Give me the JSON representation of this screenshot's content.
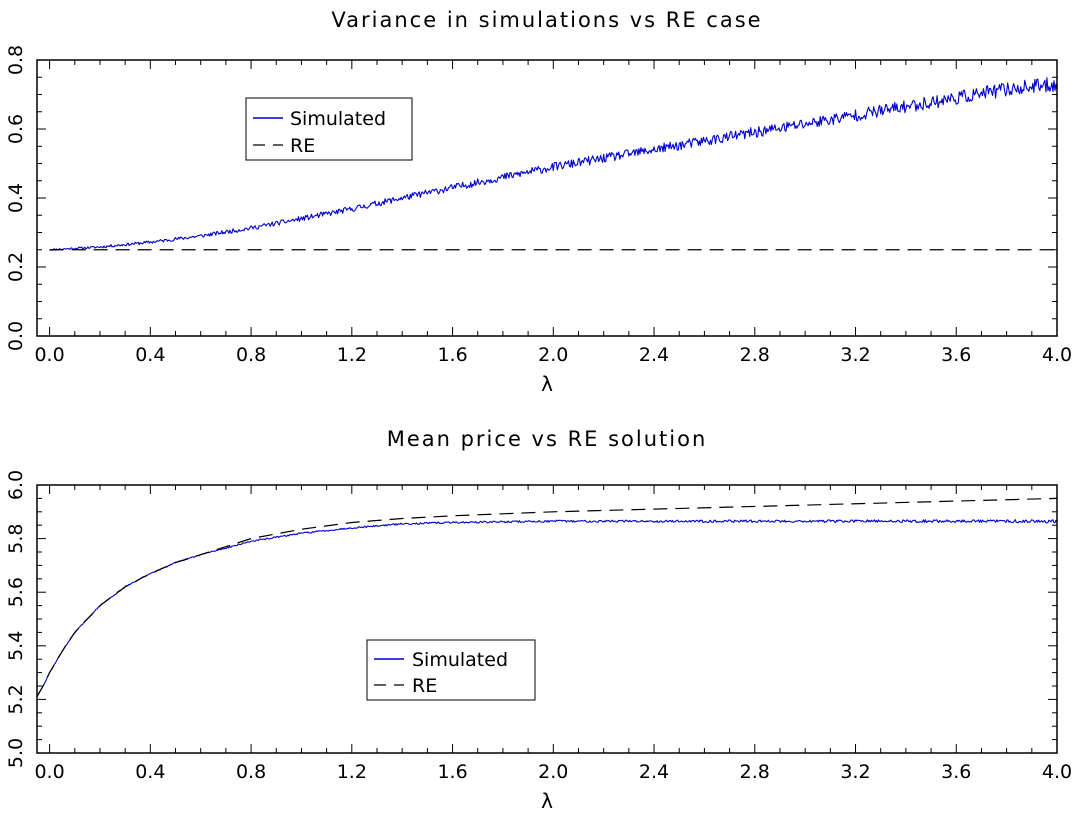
{
  "chart_data": [
    {
      "type": "line",
      "title": "Variance in simulations vs RE case",
      "xlabel": "λ",
      "ylabel": "",
      "xlim": [
        -0.05,
        4.0
      ],
      "ylim": [
        0.0,
        0.8
      ],
      "x_ticks": [
        0.0,
        0.4,
        0.8,
        1.2,
        1.6,
        2.0,
        2.4,
        2.8,
        3.2,
        3.6,
        4.0
      ],
      "x_tick_labels": [
        "0.0",
        "0.4",
        "0.8",
        "1.2",
        "1.6",
        "2.0",
        "2.4",
        "2.8",
        "3.2",
        "3.6",
        "4.0"
      ],
      "y_ticks": [
        0.0,
        0.2,
        0.4,
        0.6,
        0.8
      ],
      "y_tick_labels": [
        "0.0",
        "0.2",
        "0.4",
        "0.6",
        "0.8"
      ],
      "grid": false,
      "legend": "upper-left",
      "noise_amplitude_per_unit": 0.006,
      "series": [
        {
          "name": "Simulated",
          "color": "#0000cc",
          "style": "solid",
          "noisy": true,
          "x": [
            0.0,
            0.2,
            0.4,
            0.6,
            0.8,
            1.0,
            1.2,
            1.4,
            1.6,
            1.8,
            2.0,
            2.2,
            2.4,
            2.6,
            2.8,
            3.0,
            3.2,
            3.4,
            3.6,
            3.8,
            4.0
          ],
          "y": [
            0.25,
            0.258,
            0.272,
            0.29,
            0.313,
            0.34,
            0.368,
            0.4,
            0.43,
            0.46,
            0.49,
            0.515,
            0.54,
            0.565,
            0.59,
            0.615,
            0.64,
            0.665,
            0.69,
            0.715,
            0.73
          ]
        },
        {
          "name": "RE",
          "color": "#000000",
          "style": "dashed",
          "noisy": false,
          "x": [
            0.0,
            4.0
          ],
          "y": [
            0.25,
            0.25
          ]
        }
      ]
    },
    {
      "type": "line",
      "title": "Mean price vs RE solution",
      "xlabel": "λ",
      "ylabel": "",
      "xlim": [
        -0.05,
        4.0
      ],
      "ylim": [
        5.0,
        6.0
      ],
      "x_ticks": [
        0.0,
        0.4,
        0.8,
        1.2,
        1.6,
        2.0,
        2.4,
        2.8,
        3.2,
        3.6,
        4.0
      ],
      "x_tick_labels": [
        "0.0",
        "0.4",
        "0.8",
        "1.2",
        "1.6",
        "2.0",
        "2.4",
        "2.8",
        "3.2",
        "3.6",
        "4.0"
      ],
      "y_ticks": [
        5.0,
        5.2,
        5.4,
        5.6,
        5.8,
        6.0
      ],
      "y_tick_labels": [
        "5.0",
        "5.2",
        "5.4",
        "5.6",
        "5.8",
        "6.0"
      ],
      "grid": false,
      "legend": "center",
      "noise_amplitude_per_unit": 0.004,
      "series": [
        {
          "name": "Simulated",
          "color": "#0000cc",
          "style": "solid",
          "noisy": true,
          "x": [
            -0.05,
            -0.02,
            0.0,
            0.05,
            0.1,
            0.2,
            0.3,
            0.4,
            0.5,
            0.6,
            0.8,
            1.0,
            1.2,
            1.4,
            1.6,
            2.0,
            2.4,
            2.8,
            3.2,
            3.6,
            4.0
          ],
          "y": [
            5.21,
            5.26,
            5.3,
            5.38,
            5.45,
            5.55,
            5.62,
            5.67,
            5.71,
            5.74,
            5.79,
            5.82,
            5.84,
            5.855,
            5.86,
            5.865,
            5.865,
            5.865,
            5.865,
            5.865,
            5.865
          ]
        },
        {
          "name": "RE",
          "color": "#000000",
          "style": "dashed",
          "noisy": false,
          "x": [
            -0.05,
            -0.02,
            0.0,
            0.05,
            0.1,
            0.2,
            0.3,
            0.4,
            0.5,
            0.6,
            0.8,
            1.0,
            1.2,
            1.4,
            1.6,
            2.0,
            2.4,
            2.8,
            3.2,
            3.6,
            4.0
          ],
          "y": [
            5.21,
            5.26,
            5.3,
            5.38,
            5.45,
            5.55,
            5.62,
            5.67,
            5.71,
            5.74,
            5.8,
            5.835,
            5.86,
            5.875,
            5.885,
            5.9,
            5.91,
            5.92,
            5.93,
            5.94,
            5.95
          ]
        }
      ]
    }
  ]
}
